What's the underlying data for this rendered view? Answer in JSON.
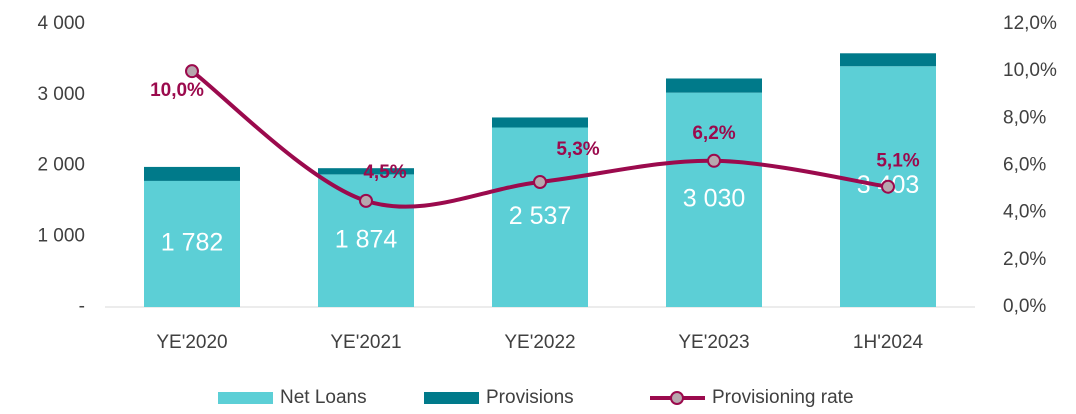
{
  "chart_data": {
    "type": "bar",
    "categories": [
      "YE'2020",
      "YE'2021",
      "YE'2022",
      "YE'2023",
      "1H'2024"
    ],
    "series": [
      {
        "name": "Net Loans",
        "color": "#5ccfd6",
        "values": [
          1782,
          1874,
          2537,
          3030,
          3403
        ],
        "value_labels": [
          "1 782",
          "1 874",
          "2 537",
          "3 030",
          "3 403"
        ]
      },
      {
        "name": "Provisions",
        "color": "#007a8a",
        "values": [
          198,
          88,
          142,
          200,
          183
        ]
      },
      {
        "name": "Provisioning rate",
        "color": "#9b0a4d",
        "type": "line",
        "axis": "y2",
        "values": [
          10.0,
          4.5,
          5.3,
          6.2,
          5.1
        ],
        "value_labels": [
          "10,0%",
          "4,5%",
          "5,3%",
          "6,2%",
          "5,1%"
        ]
      }
    ],
    "stacked": true,
    "ylim": [
      0,
      4000
    ],
    "yticks": [
      {
        "value": 0,
        "label": "-"
      },
      {
        "value": 1000,
        "label": "1 000"
      },
      {
        "value": 2000,
        "label": "2 000"
      },
      {
        "value": 3000,
        "label": "3 000"
      },
      {
        "value": 4000,
        "label": "4 000"
      }
    ],
    "y2lim": [
      0,
      12
    ],
    "y2ticks": [
      {
        "value": 0,
        "label": "0,0%"
      },
      {
        "value": 2,
        "label": "2,0%"
      },
      {
        "value": 4,
        "label": "4,0%"
      },
      {
        "value": 6,
        "label": "6,0%"
      },
      {
        "value": 8,
        "label": "8,0%"
      },
      {
        "value": 10,
        "label": "10,0%"
      },
      {
        "value": 12,
        "label": "12,0%"
      }
    ],
    "legend": "bottom"
  }
}
